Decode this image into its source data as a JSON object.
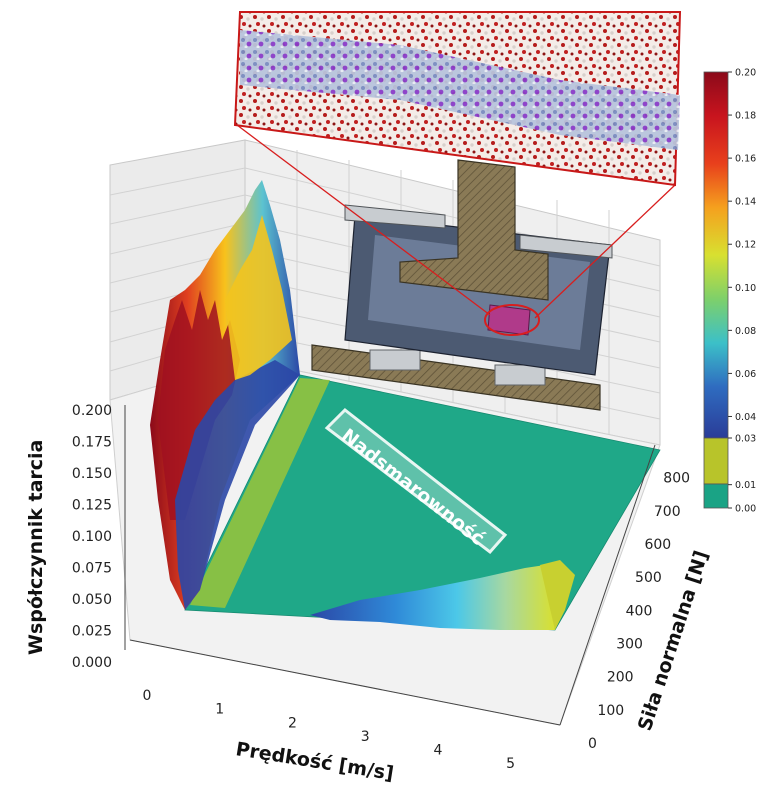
{
  "chart_data": {
    "type": "surface3d",
    "zlabel": "Współczynnik tarcia",
    "xlabel": "Prędkość [m/s]",
    "ylabel": "Siła normalna [N]",
    "xticks": [
      "0",
      "1",
      "2",
      "3",
      "4",
      "5"
    ],
    "yticks": [
      "0",
      "100",
      "200",
      "300",
      "400",
      "500",
      "600",
      "700",
      "800"
    ],
    "zticks": [
      "0.000",
      "0.025",
      "0.050",
      "0.075",
      "0.100",
      "0.125",
      "0.150",
      "0.175",
      "0.200"
    ],
    "xlim": [
      0,
      5.5
    ],
    "ylim": [
      0,
      850
    ],
    "zlim": [
      0,
      0.2
    ],
    "annotation": "Nadsmarowność",
    "colorbar": {
      "ticks": [
        "0.20",
        "0.18",
        "0.16",
        "0.14",
        "0.12",
        "0.10",
        "0.08",
        "0.06",
        "0.04",
        "0.03",
        "0.01",
        "0.00"
      ],
      "colors_top_to_bottom": [
        "#8b0a1a",
        "#c8141e",
        "#e8401c",
        "#f5801e",
        "#f8c21c",
        "#d8e030",
        "#a8d84a",
        "#5cc3a0",
        "#2fa8d8",
        "#2f6cc0",
        "#2a3c98"
      ],
      "band_low": "#1aa385",
      "band_mid": "#b8c42a"
    },
    "surface_colors": {
      "superlubricity": "#1fa888",
      "high": "#b01525",
      "mid": "#f3c41e",
      "low": "#2b47a6"
    }
  }
}
